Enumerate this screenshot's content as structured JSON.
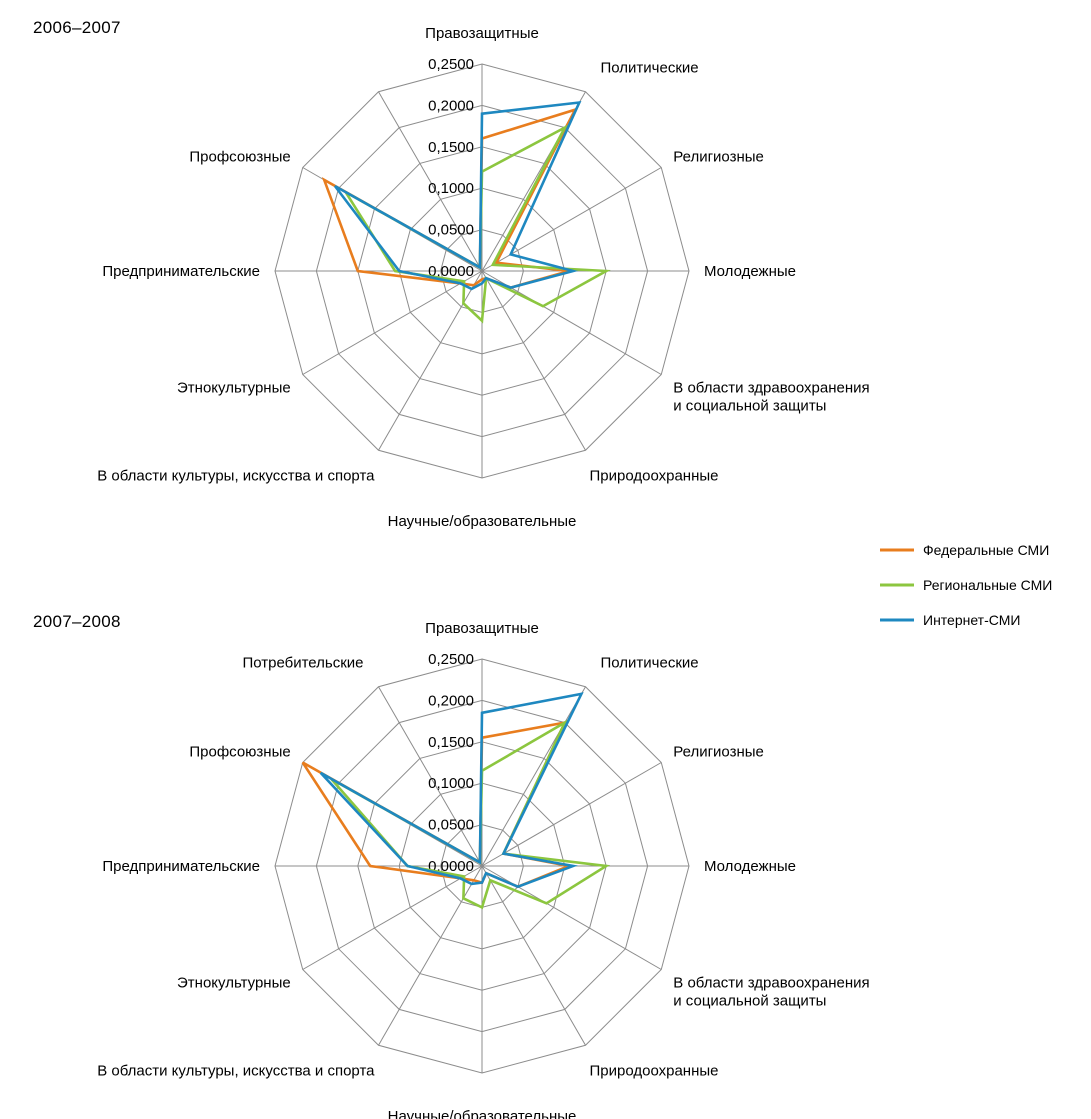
{
  "colors": {
    "federal": "#e87d1e",
    "regional": "#8cc63f",
    "internet": "#1e88c0",
    "grid": "#8c8c8c"
  },
  "legend": [
    {
      "label": "Федеральные СМИ",
      "color": "#e87d1e"
    },
    {
      "label": "Региональные СМИ",
      "color": "#8cc63f"
    },
    {
      "label": "Интернет-СМИ",
      "color": "#1e88c0"
    }
  ],
  "chart_data": [
    {
      "type": "radar",
      "title": "2006–2007",
      "rlim": [
        0,
        0.25
      ],
      "ticks": [
        "0,0000",
        "0,0500",
        "0,1000",
        "0,1500",
        "0,2000",
        "0,2500"
      ],
      "tick_values": [
        0,
        0.05,
        0.1,
        0.15,
        0.2,
        0.25
      ],
      "categories": [
        [
          "Правозащитные"
        ],
        [
          "Политические"
        ],
        [
          "Религиозные"
        ],
        [
          "Молодежные"
        ],
        [
          "В области здравоохранения",
          "и социальной защиты"
        ],
        [
          "Природоохранные"
        ],
        [
          "Научные/образовательные"
        ],
        [
          "В области культуры, искусства и спорта"
        ],
        [
          "Этнокультурные"
        ],
        [
          "Предпринимательские"
        ],
        [
          "Профсоюзные"
        ],
        [
          ""
        ]
      ],
      "series": [
        {
          "name": "Федеральные СМИ",
          "key": "federal",
          "values": [
            0.16,
            0.225,
            0.02,
            0.105,
            0.04,
            0.01,
            0.01,
            0.02,
            0.03,
            0.15,
            0.22,
            0.005
          ]
        },
        {
          "name": "Региональные СМИ",
          "key": "regional",
          "values": [
            0.12,
            0.2,
            0.015,
            0.15,
            0.085,
            0.01,
            0.06,
            0.045,
            0.025,
            0.105,
            0.19,
            0.005
          ]
        },
        {
          "name": "Интернет-СМИ",
          "key": "internet",
          "values": [
            0.19,
            0.235,
            0.04,
            0.11,
            0.04,
            0.01,
            0.015,
            0.025,
            0.03,
            0.1,
            0.205,
            0.005
          ]
        }
      ]
    },
    {
      "type": "radar",
      "title": "2007–2008",
      "rlim": [
        0,
        0.25
      ],
      "ticks": [
        "0,0000",
        "0,0500",
        "0,1000",
        "0,1500",
        "0,2000",
        "0,2500"
      ],
      "tick_values": [
        0,
        0.05,
        0.1,
        0.15,
        0.2,
        0.25
      ],
      "categories": [
        [
          "Правозащитные"
        ],
        [
          "Политические"
        ],
        [
          "Религиозные"
        ],
        [
          "Молодежные"
        ],
        [
          "В области здравоохранения",
          "и социальной защиты"
        ],
        [
          "Природоохранные"
        ],
        [
          "Научные/образовательные"
        ],
        [
          "В области культуры, искусства и спорта"
        ],
        [
          "Этнокультурные"
        ],
        [
          "Предпринимательские"
        ],
        [
          "Профсоюзные"
        ],
        [
          "Потребительские"
        ]
      ],
      "series": [
        {
          "name": "Федеральные СМИ",
          "key": "federal",
          "values": [
            0.155,
            0.2,
            0.03,
            0.105,
            0.05,
            0.01,
            0.02,
            0.02,
            0.03,
            0.135,
            0.25,
            0.005
          ]
        },
        {
          "name": "Региональные СМИ",
          "key": "regional",
          "values": [
            0.115,
            0.2,
            0.03,
            0.15,
            0.09,
            0.02,
            0.05,
            0.045,
            0.025,
            0.09,
            0.21,
            0.005
          ]
        },
        {
          "name": "Интернет-СМИ",
          "key": "internet",
          "values": [
            0.185,
            0.24,
            0.03,
            0.11,
            0.05,
            0.01,
            0.02,
            0.025,
            0.03,
            0.09,
            0.225,
            0.005
          ]
        }
      ]
    }
  ]
}
